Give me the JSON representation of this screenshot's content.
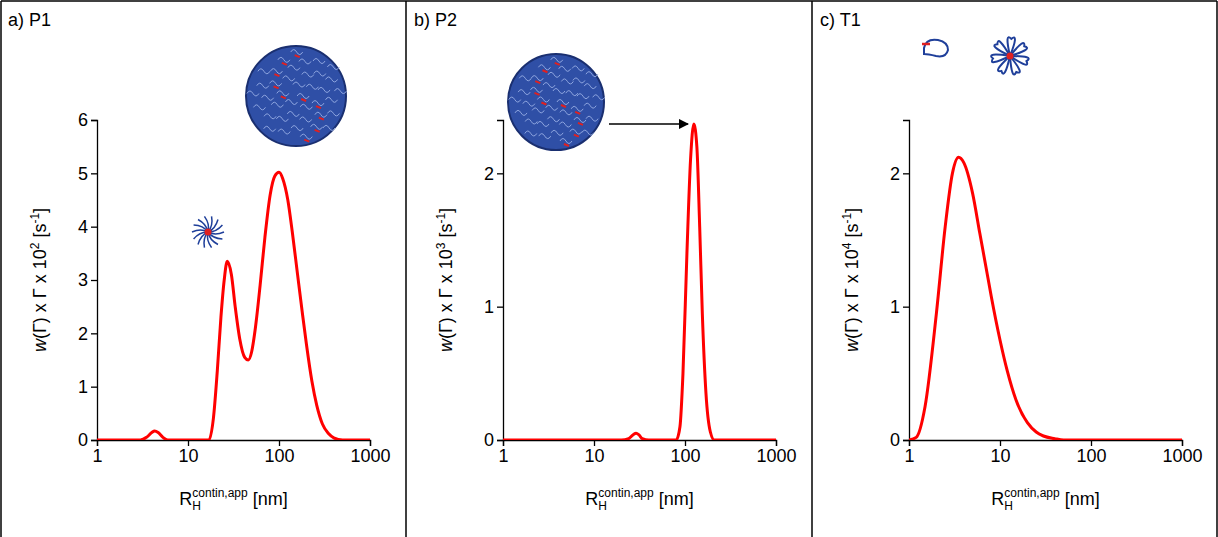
{
  "chart_data": [
    {
      "type": "line",
      "title": "a) P1",
      "xlabel": [
        "R",
        "H",
        "contin,app",
        " [nm]"
      ],
      "ylabel": [
        "w",
        "(Γ) x Γ x 10",
        "2",
        " [s",
        "-1",
        "]"
      ],
      "log": "x",
      "color": "#ff0000",
      "x": [
        1,
        2,
        3,
        3.5,
        4,
        4.3,
        4.7,
        5.3,
        6,
        8,
        12,
        17,
        19,
        21,
        23,
        25,
        27,
        30,
        33,
        37,
        42,
        46,
        50,
        55,
        62,
        70,
        80,
        90,
        100,
        110,
        125,
        140,
        160,
        180,
        200,
        230,
        260,
        300,
        350,
        400,
        500,
        700,
        1000
      ],
      "values": [
        0,
        0,
        0,
        0.05,
        0.14,
        0.17,
        0.14,
        0.05,
        0,
        0,
        0,
        0,
        0.4,
        1.3,
        2.3,
        3.0,
        3.35,
        3.1,
        2.5,
        1.9,
        1.55,
        1.5,
        1.65,
        2.1,
        2.9,
        3.8,
        4.6,
        4.95,
        5.02,
        4.9,
        4.5,
        3.9,
        3.1,
        2.4,
        1.8,
        1.1,
        0.65,
        0.3,
        0.12,
        0.04,
        0,
        0,
        0
      ],
      "xlim": [
        1,
        1000
      ],
      "xticks": [
        1,
        10,
        100,
        1000
      ],
      "ylim": [
        0,
        6
      ],
      "yticks": [
        0,
        1,
        2,
        3,
        4,
        5,
        6
      ]
    },
    {
      "type": "line",
      "title": "b) P2",
      "xlabel": [
        "R",
        "H",
        "contin,app",
        " [nm]"
      ],
      "ylabel": [
        "w",
        "(Γ) x Γ x 10",
        "3",
        " [s",
        "-1",
        "]"
      ],
      "log": "x",
      "color": "#ff0000",
      "x": [
        1,
        10,
        20,
        24,
        27,
        29,
        31,
        34,
        40,
        60,
        80,
        88,
        95,
        105,
        115,
        125,
        135,
        145,
        155,
        170,
        190,
        210,
        300,
        1000
      ],
      "values": [
        0,
        0,
        0,
        0.01,
        0.04,
        0.05,
        0.04,
        0.01,
        0,
        0,
        0,
        0.1,
        0.5,
        1.4,
        2.1,
        2.37,
        2.2,
        1.6,
        0.95,
        0.35,
        0.06,
        0,
        0,
        0
      ],
      "xlim": [
        1,
        1000
      ],
      "xticks": [
        1,
        10,
        100,
        1000
      ],
      "ylim": [
        0,
        2.4
      ],
      "yticks": [
        0,
        1,
        2
      ]
    },
    {
      "type": "line",
      "title": "c) T1",
      "xlabel": [
        "R",
        "H",
        "contin,app",
        " [nm]"
      ],
      "ylabel": [
        "w",
        "(Γ) x Γ x 10",
        "4",
        " [s",
        "-1",
        "]"
      ],
      "log": "x",
      "color": "#ff0000",
      "x": [
        1,
        1.2,
        1.5,
        2,
        2.5,
        3,
        3.5,
        4,
        5,
        6,
        7,
        8,
        10,
        12,
        15,
        20,
        25,
        30,
        40,
        50,
        70,
        100,
        1000
      ],
      "values": [
        0,
        0.02,
        0.25,
        0.95,
        1.6,
        2.0,
        2.12,
        2.08,
        1.85,
        1.55,
        1.3,
        1.08,
        0.75,
        0.52,
        0.3,
        0.13,
        0.06,
        0.03,
        0.01,
        0,
        0,
        0,
        0
      ],
      "xlim": [
        1,
        1000
      ],
      "xticks": [
        1,
        10,
        100,
        1000
      ],
      "ylim": [
        0,
        2.4
      ],
      "yticks": [
        0,
        1,
        2
      ]
    }
  ]
}
